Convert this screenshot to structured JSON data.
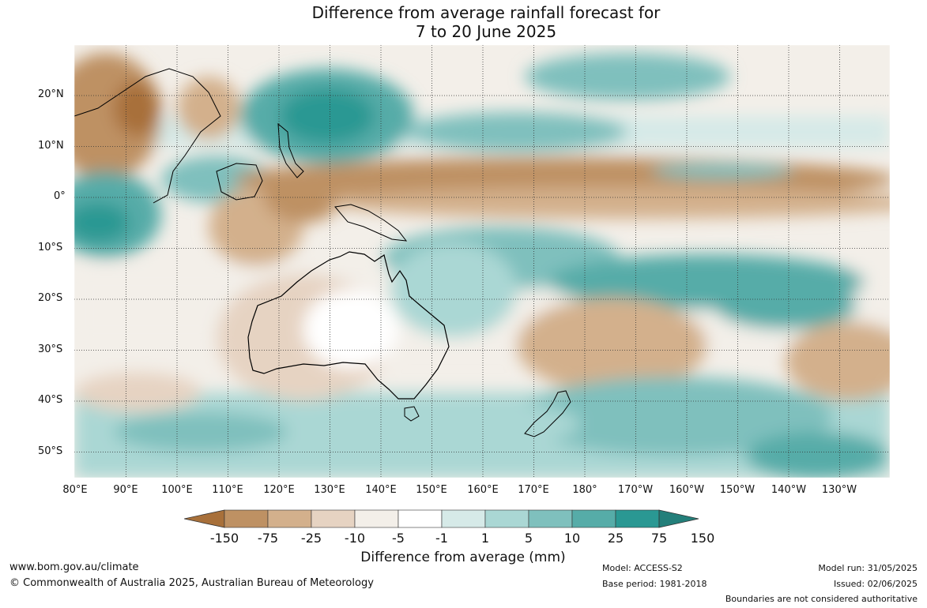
{
  "title": {
    "line1": "Difference from average rainfall forecast for",
    "line2": "7 to 20 June 2025"
  },
  "map": {
    "lon_labels": [
      "80°E",
      "90°E",
      "100°E",
      "110°E",
      "120°E",
      "130°E",
      "140°E",
      "150°E",
      "160°E",
      "170°E",
      "180°",
      "170°W",
      "160°W",
      "150°W",
      "140°W",
      "130°W"
    ],
    "lat_labels": [
      "20°N",
      "10°N",
      "0°",
      "10°S",
      "20°S",
      "30°S",
      "40°S",
      "50°S"
    ],
    "regions": [
      {
        "level": "-75",
        "lon_from": 80,
        "lon_to": 98,
        "lat_from": 29,
        "lat_to": 8
      },
      {
        "level": "-150",
        "lon_from": 90,
        "lon_to": 96,
        "lat_from": 22,
        "lat_to": 13
      },
      {
        "level": "75",
        "lon_from": 80,
        "lon_to": 92,
        "lat_from": 4,
        "lat_to": -8
      },
      {
        "level": "25",
        "lon_from": 128,
        "lon_to": 142,
        "lat_from": 22,
        "lat_to": 6
      },
      {
        "level": "-75",
        "lon_from": 140,
        "lon_to": 225,
        "lat_from": 8,
        "lat_to": -3
      },
      {
        "level": "25",
        "lon_from": 150,
        "lon_to": 225,
        "lat_from": -6,
        "lat_to": -20
      },
      {
        "level": "-25",
        "lon_from": 160,
        "lon_to": 200,
        "lat_from": -18,
        "lat_to": -32
      },
      {
        "level": "10",
        "lon_from": 185,
        "lon_to": 240,
        "lat_from": -36,
        "lat_to": -55
      }
    ]
  },
  "colorbar": {
    "ticks": [
      "-150",
      "-75",
      "-25",
      "-10",
      "-5",
      "-1",
      "1",
      "5",
      "10",
      "25",
      "75",
      "150"
    ],
    "colors": [
      "#a8703a",
      "#be9163",
      "#d3b08c",
      "#e6d3c2",
      "#f3efe9",
      "#ffffff",
      "#d6eae8",
      "#aad7d4",
      "#7fc0bd",
      "#56aca8",
      "#2a9893",
      "#237f7a"
    ],
    "label": "Difference from average (mm)"
  },
  "footer": {
    "url": "www.bom.gov.au/climate",
    "copyright": "© Commonwealth of Australia 2025, Australian Bureau of Meteorology",
    "model": "Model: ACCESS-S2",
    "base_period": "Base period: 1981-2018",
    "model_run": "Model run: 31/05/2025",
    "issued": "Issued: 02/06/2025",
    "disclaimer": "Boundaries are not considered authoritative"
  }
}
